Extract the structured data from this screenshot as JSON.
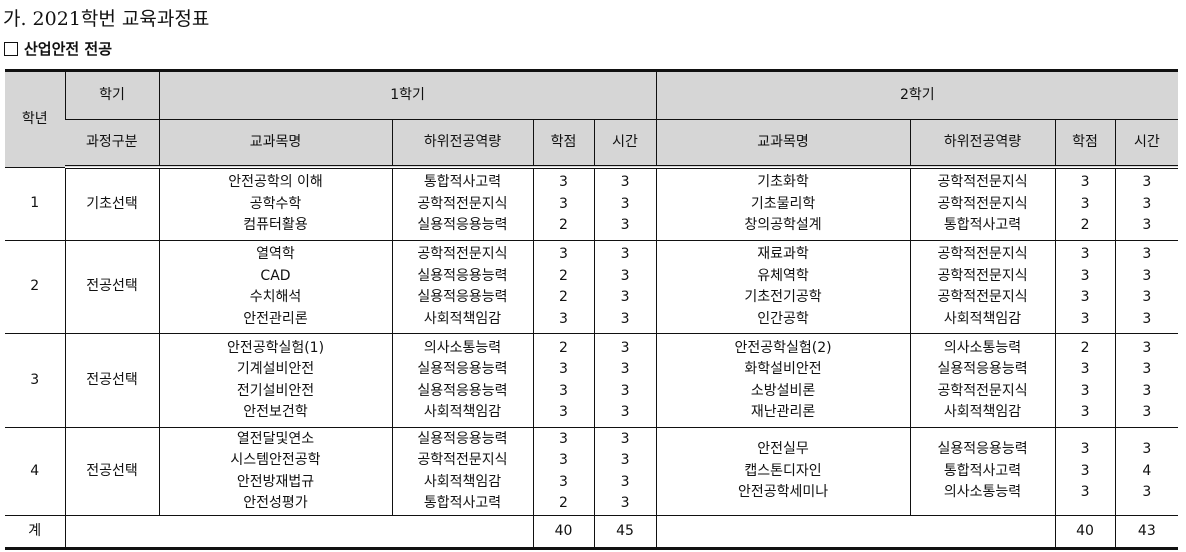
{
  "title": "가. 2021학번 교육과정표",
  "subtitle": "산업안전 전공",
  "header": {
    "year": "학년",
    "semester": "학기",
    "sem1": "1학기",
    "sem2": "2학기",
    "category": "과정구분",
    "course": "교과목명",
    "competency": "하위전공역량",
    "credits": "학점",
    "hours": "시간"
  },
  "rows": [
    {
      "year": "1",
      "category": "기초선택",
      "sem1": {
        "courses": [
          "안전공학의 이해",
          "공학수학",
          "컴퓨터활용"
        ],
        "competencies": [
          "통합적사고력",
          "공학적전문지식",
          "실용적응용능력"
        ],
        "credits": [
          "3",
          "3",
          "2"
        ],
        "hours": [
          "3",
          "3",
          "3"
        ]
      },
      "sem2": {
        "courses": [
          "기초화학",
          "기초물리학",
          "창의공학설계"
        ],
        "competencies": [
          "공학적전문지식",
          "공학적전문지식",
          "통합적사고력"
        ],
        "credits": [
          "3",
          "3",
          "2"
        ],
        "hours": [
          "3",
          "3",
          "3"
        ]
      }
    },
    {
      "year": "2",
      "category": "전공선택",
      "sem1": {
        "courses": [
          "열역학",
          "CAD",
          "수치해석",
          "안전관리론"
        ],
        "competencies": [
          "공학적전문지식",
          "실용적응용능력",
          "실용적응용능력",
          "사회적책임감"
        ],
        "credits": [
          "3",
          "2",
          "2",
          "3"
        ],
        "hours": [
          "3",
          "3",
          "3",
          "3"
        ]
      },
      "sem2": {
        "courses": [
          "재료과학",
          "유체역학",
          "기초전기공학",
          "인간공학"
        ],
        "competencies": [
          "공학적전문지식",
          "공학적전문지식",
          "공학적전문지식",
          "사회적책임감"
        ],
        "credits": [
          "3",
          "3",
          "3",
          "3"
        ],
        "hours": [
          "3",
          "3",
          "3",
          "3"
        ]
      }
    },
    {
      "year": "3",
      "category": "전공선택",
      "sem1": {
        "courses": [
          "안전공학실험(1)",
          "기계설비안전",
          "전기설비안전",
          "안전보건학"
        ],
        "competencies": [
          "의사소통능력",
          "실용적응용능력",
          "실용적응용능력",
          "사회적책임감"
        ],
        "credits": [
          "2",
          "3",
          "3",
          "3"
        ],
        "hours": [
          "3",
          "3",
          "3",
          "3"
        ]
      },
      "sem2": {
        "courses": [
          "안전공학실험(2)",
          "화학설비안전",
          "소방설비론",
          "재난관리론"
        ],
        "competencies": [
          "의사소통능력",
          "실용적응용능력",
          "공학적전문지식",
          "사회적책임감"
        ],
        "credits": [
          "2",
          "3",
          "3",
          "3"
        ],
        "hours": [
          "3",
          "3",
          "3",
          "3"
        ]
      }
    },
    {
      "year": "4",
      "category": "전공선택",
      "sem1": {
        "courses": [
          "열전달및연소",
          "시스템안전공학",
          "안전방재법규",
          "안전성평가"
        ],
        "competencies": [
          "실용적응용능력",
          "공학적전문지식",
          "사회적책임감",
          "통합적사고력"
        ],
        "credits": [
          "3",
          "3",
          "3",
          "2"
        ],
        "hours": [
          "3",
          "3",
          "3",
          "3"
        ]
      },
      "sem2": {
        "courses": [
          "안전실무",
          "캡스톤디자인",
          "안전공학세미나"
        ],
        "competencies": [
          "실용적응용능력",
          "통합적사고력",
          "의사소통능력"
        ],
        "credits": [
          "3",
          "3",
          "3"
        ],
        "hours": [
          "3",
          "4",
          "3"
        ]
      }
    }
  ],
  "total": {
    "label": "계",
    "sem1_credits": "40",
    "sem1_hours": "45",
    "sem2_credits": "40",
    "sem2_hours": "43"
  }
}
